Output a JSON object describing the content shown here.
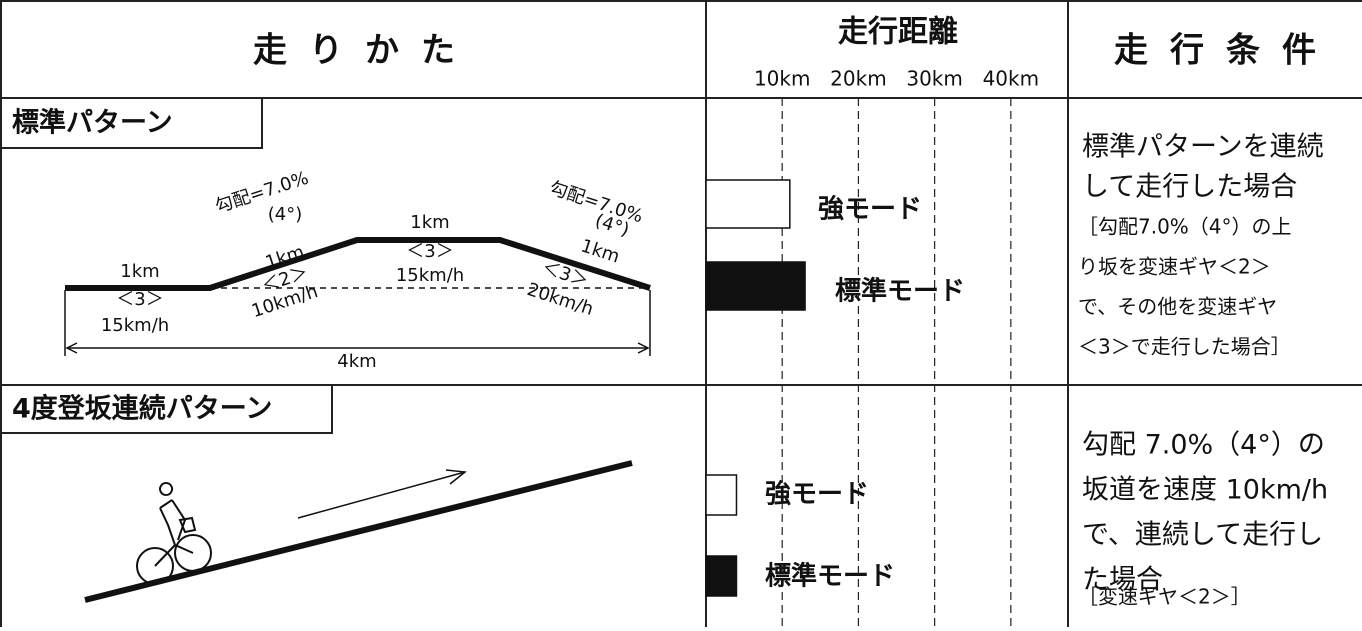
{
  "header": {
    "method": "走りかた",
    "distance": "走行距離",
    "conditions": "走行条件"
  },
  "distance_axis": {
    "xlim": [
      0,
      47.5
    ],
    "xticks": [
      {
        "value": 10,
        "label": "10km"
      },
      {
        "value": 20,
        "label": "20km"
      },
      {
        "value": 30,
        "label": "30km"
      },
      {
        "value": 40,
        "label": "40km"
      }
    ]
  },
  "rows": [
    {
      "pattern": "標準パターン",
      "profile_labels": [
        "1km",
        "＜3＞",
        "15km/h",
        "勾配=7.0%",
        "(4°)",
        "1km",
        "＜2＞",
        "10km/h",
        "1km",
        "＜3＞",
        "15km/h",
        "勾配=7.0%",
        "(4°)",
        "1km",
        "＜3＞",
        "20km/h",
        "4km"
      ],
      "bars": [
        {
          "name": "強モード",
          "value": 11,
          "color": "#ffffff"
        },
        {
          "name": "標準モード",
          "value": 13,
          "color": "#111111"
        }
      ],
      "condition_lines": [
        "標準パターンを連続",
        "して走行した場合"
      ],
      "note_lines": [
        "［勾配7.0%（4°）の上",
        "り坂を変速ギヤ＜2＞",
        "で、その他を変速ギヤ",
        "＜3＞で走行した場合］"
      ]
    },
    {
      "pattern": "4度登坂連続パターン",
      "bars": [
        {
          "name": "強モード",
          "value": 4,
          "color": "#ffffff"
        },
        {
          "name": "標準モード",
          "value": 4,
          "color": "#111111"
        }
      ],
      "condition_lines": [
        "勾配 7.0%（4°）の",
        "坂道を速度 10km/h",
        "で、連続して走行し",
        "た場合"
      ],
      "note_lines": [
        "［変速ギヤ＜2＞］"
      ]
    }
  ]
}
